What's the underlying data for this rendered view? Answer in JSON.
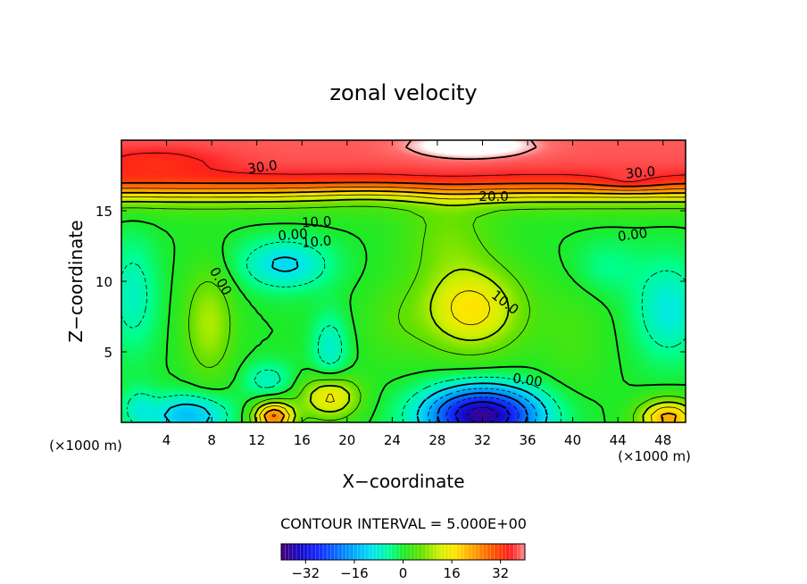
{
  "chart_data": {
    "type": "heatmap",
    "title": "zonal velocity",
    "xlabel": "X−coordinate",
    "ylabel": "Z−coordinate",
    "x_unit_note": "(×1000 m)",
    "y_unit_note": "(×1000 m)",
    "xlim": [
      0,
      50
    ],
    "ylim": [
      0,
      20
    ],
    "x_ticks": [
      4,
      8,
      12,
      16,
      20,
      24,
      28,
      32,
      36,
      40,
      44,
      48
    ],
    "y_ticks": [
      5,
      10,
      15
    ],
    "contour_interval_text": "CONTOUR INTERVAL = 5.000E+00",
    "contour_interval": 5,
    "colorbar": {
      "min": -40,
      "max": 40,
      "ticks": [
        -32,
        -16,
        0,
        16,
        32
      ],
      "tick_labels": [
        "−32",
        "−16",
        "0",
        "16",
        "32"
      ]
    },
    "contour_labels": [
      {
        "text": "30.0",
        "x": 12.5,
        "z": 18.1,
        "rot": -8
      },
      {
        "text": "30.0",
        "x": 46.0,
        "z": 17.7,
        "rot": -5
      },
      {
        "text": "20.0",
        "x": 33.0,
        "z": 16.0,
        "rot": 0
      },
      {
        "text": "10.0",
        "x": 17.3,
        "z": 14.2,
        "rot": -3
      },
      {
        "text": "0.00",
        "x": 15.2,
        "z": 13.3,
        "rot": -5
      },
      {
        "text": "10.0",
        "x": 17.3,
        "z": 12.8,
        "rot": -5
      },
      {
        "text": "0.00",
        "x": 45.3,
        "z": 13.3,
        "rot": -8
      },
      {
        "text": "0.00",
        "x": 8.8,
        "z": 10.0,
        "rot": 60
      },
      {
        "text": "10.0",
        "x": 34.0,
        "z": 8.5,
        "rot": 38
      },
      {
        "text": "0.00",
        "x": 36.0,
        "z": 3.0,
        "rot": 8
      }
    ],
    "field_description_points": [
      {
        "x": 32,
        "z": 0.8,
        "value": -35
      },
      {
        "x": 31,
        "z": 19.5,
        "value": 40
      },
      {
        "x": 13.5,
        "z": 0.8,
        "value": 24
      },
      {
        "x": 48,
        "z": 0.8,
        "value": 24
      },
      {
        "x": 31,
        "z": 8,
        "value": 17
      },
      {
        "x": 7.5,
        "z": 7.0,
        "value": 10
      },
      {
        "x": 14,
        "z": 11,
        "value": -10
      },
      {
        "x": 49,
        "z": 8,
        "value": -8
      },
      {
        "x": 6,
        "z": 0.8,
        "value": -14
      }
    ],
    "series_summary": "Zonal velocity field: strong positive jet (20–40) above z≈16; mixed −12..+18 interior; strong negative core (≈35) near x≈32, z≈1."
  }
}
